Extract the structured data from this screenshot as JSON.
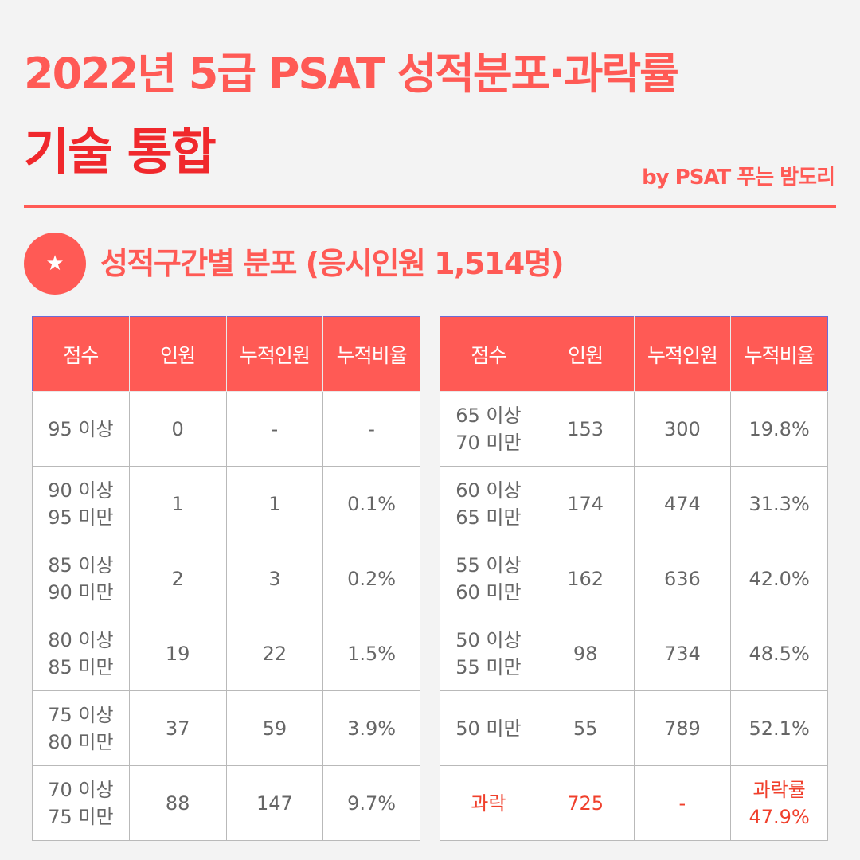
{
  "header": {
    "title_line1": "2022년 5급 PSAT 성적분포·과락률",
    "title_line2": "기술 통합",
    "byline": "by PSAT 푸는 밤도리"
  },
  "section": {
    "icon": "star-icon",
    "icon_glyph": "★",
    "title": "성적구간별 분포 (응시인원 1,514명)"
  },
  "colors": {
    "accent": "#ff5a55",
    "title_red": "#f0282c",
    "highlight": "#f0402c"
  },
  "tables": {
    "columns": [
      "점수",
      "인원",
      "누적인원",
      "누적비율"
    ],
    "left": [
      [
        "95 이상",
        "0",
        "-",
        "-"
      ],
      [
        "90 이상\n95 미만",
        "1",
        "1",
        "0.1%"
      ],
      [
        "85 이상\n90 미만",
        "2",
        "3",
        "0.2%"
      ],
      [
        "80 이상\n85 미만",
        "19",
        "22",
        "1.5%"
      ],
      [
        "75 이상\n80 미만",
        "37",
        "59",
        "3.9%"
      ],
      [
        "70 이상\n75 미만",
        "88",
        "147",
        "9.7%"
      ]
    ],
    "right": [
      [
        "65 이상\n70 미만",
        "153",
        "300",
        "19.8%"
      ],
      [
        "60 이상\n65 미만",
        "174",
        "474",
        "31.3%"
      ],
      [
        "55 이상\n60 미만",
        "162",
        "636",
        "42.0%"
      ],
      [
        "50 이상\n55 미만",
        "98",
        "734",
        "48.5%"
      ],
      [
        "50 미만",
        "55",
        "789",
        "52.1%"
      ],
      [
        "과락",
        "725",
        "-",
        "과락률\n47.9%"
      ]
    ]
  }
}
